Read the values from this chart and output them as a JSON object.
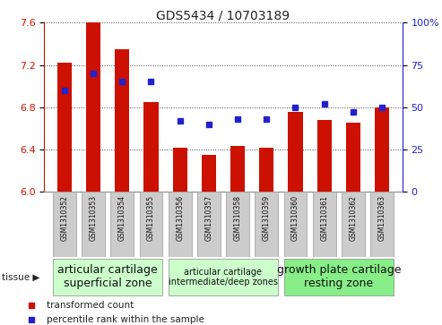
{
  "title": "GDS5434 / 10703189",
  "samples": [
    "GSM1310352",
    "GSM1310353",
    "GSM1310354",
    "GSM1310355",
    "GSM1310356",
    "GSM1310357",
    "GSM1310358",
    "GSM1310359",
    "GSM1310360",
    "GSM1310361",
    "GSM1310362",
    "GSM1310363"
  ],
  "bar_values": [
    7.22,
    7.6,
    7.35,
    6.85,
    6.42,
    6.35,
    6.43,
    6.42,
    6.76,
    6.68,
    6.65,
    6.8
  ],
  "bar_base": 6.0,
  "blue_values": [
    60,
    70,
    65,
    65,
    42,
    40,
    43,
    43,
    50,
    52,
    47,
    50
  ],
  "left_ylim": [
    6.0,
    7.6
  ],
  "left_yticks": [
    6.0,
    6.4,
    6.8,
    7.2,
    7.6
  ],
  "right_ylim": [
    0,
    100
  ],
  "right_yticks": [
    0,
    25,
    50,
    75,
    100
  ],
  "right_yticklabels": [
    "0",
    "25",
    "50",
    "75",
    "100%"
  ],
  "bar_color": "#cc1100",
  "blue_color": "#2222cc",
  "tissue_groups": [
    {
      "label": "articular cartilage\nsuperficial zone",
      "start": 0,
      "end": 3,
      "color": "#ccffcc",
      "fontsize": 9
    },
    {
      "label": "articular cartilage\nintermediate/deep zones",
      "start": 4,
      "end": 7,
      "color": "#ccffcc",
      "fontsize": 7
    },
    {
      "label": "growth plate cartilage\nresting zone",
      "start": 8,
      "end": 11,
      "color": "#88ee88",
      "fontsize": 9
    }
  ],
  "tissue_label": "tissue",
  "legend_items": [
    {
      "label": "transformed count",
      "color": "#cc1100"
    },
    {
      "label": "percentile rank within the sample",
      "color": "#2222cc"
    }
  ],
  "grid_color": "#444444",
  "background_color": "#ffffff",
  "axis_left_color": "#cc1100",
  "axis_right_color": "#2222cc",
  "bar_width": 0.5,
  "sample_box_color": "#cccccc",
  "n_samples": 12
}
